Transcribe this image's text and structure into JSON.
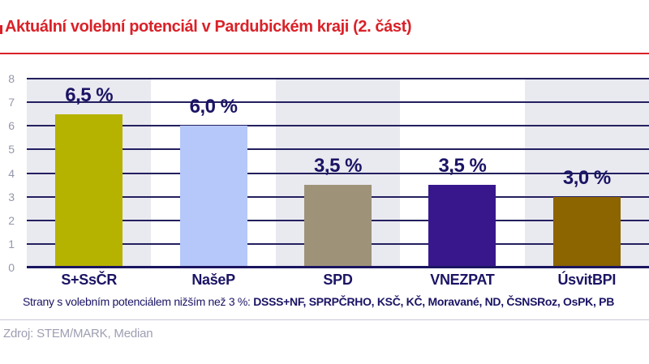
{
  "slide": {
    "title": "Aktuální volební potenciál v Pardubickém kraji (2. část)",
    "accent_red": "#da2128"
  },
  "chart_data": {
    "type": "bar",
    "title": "Aktuální volební potenciál v Pardubickém kraji (2. část)",
    "categories": [
      "S+SsČR",
      "NašeP",
      "SPD",
      "VNEZPAT",
      "ÚsvitBPI"
    ],
    "values": [
      6.5,
      6.0,
      3.5,
      3.5,
      3.0
    ],
    "value_labels": [
      "6,5 %",
      "6,0 %",
      "3,5 %",
      "3,5 %",
      "3,0 %"
    ],
    "bar_colors": [
      "#b6b200",
      "#b6c8fa",
      "#9e9379",
      "#38178d",
      "#8c6400"
    ],
    "ylim": [
      0,
      8
    ],
    "yticks": [
      0,
      1,
      2,
      3,
      4,
      5,
      6,
      7,
      8
    ],
    "grid": true,
    "legend": "none",
    "band_colors": [
      "#e9e9f0",
      "#ffffff"
    ],
    "gridline_color": "#23205f",
    "label_color": "#1b1464",
    "tick_color": "#9597ab"
  },
  "footnote": {
    "prefix": "Strany s volebním potenciálem nižším než 3 %: ",
    "parties": "DSSS+NF, SPRPČRHO, KSČ, KČ, Moravané, ND, ČSNSRoz, OsPK, PB"
  },
  "source": "Zdroj: STEM/MARK, Median"
}
